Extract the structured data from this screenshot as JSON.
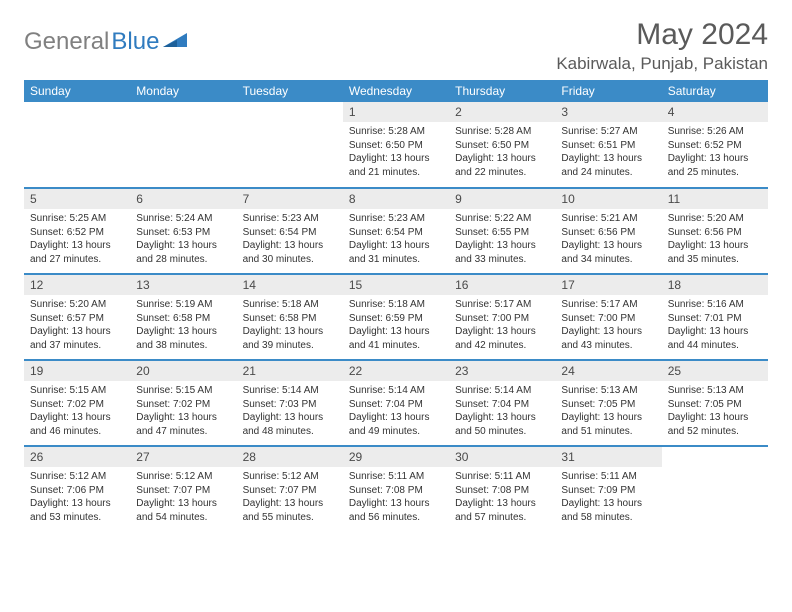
{
  "brand": {
    "name1": "General",
    "name2": "Blue"
  },
  "title": "May 2024",
  "location": "Kabirwala, Punjab, Pakistan",
  "colors": {
    "header_bg": "#3b8bc7",
    "header_text": "#ffffff",
    "daynum_bg": "#ececec",
    "border": "#3b8bc7",
    "logo_gray": "#808080",
    "logo_blue": "#2f7bbf"
  },
  "weekdays": [
    "Sunday",
    "Monday",
    "Tuesday",
    "Wednesday",
    "Thursday",
    "Friday",
    "Saturday"
  ],
  "weeks": [
    [
      null,
      null,
      null,
      {
        "n": "1",
        "sr": "5:28 AM",
        "ss": "6:50 PM",
        "dl": "13 hours and 21 minutes."
      },
      {
        "n": "2",
        "sr": "5:28 AM",
        "ss": "6:50 PM",
        "dl": "13 hours and 22 minutes."
      },
      {
        "n": "3",
        "sr": "5:27 AM",
        "ss": "6:51 PM",
        "dl": "13 hours and 24 minutes."
      },
      {
        "n": "4",
        "sr": "5:26 AM",
        "ss": "6:52 PM",
        "dl": "13 hours and 25 minutes."
      }
    ],
    [
      {
        "n": "5",
        "sr": "5:25 AM",
        "ss": "6:52 PM",
        "dl": "13 hours and 27 minutes."
      },
      {
        "n": "6",
        "sr": "5:24 AM",
        "ss": "6:53 PM",
        "dl": "13 hours and 28 minutes."
      },
      {
        "n": "7",
        "sr": "5:23 AM",
        "ss": "6:54 PM",
        "dl": "13 hours and 30 minutes."
      },
      {
        "n": "8",
        "sr": "5:23 AM",
        "ss": "6:54 PM",
        "dl": "13 hours and 31 minutes."
      },
      {
        "n": "9",
        "sr": "5:22 AM",
        "ss": "6:55 PM",
        "dl": "13 hours and 33 minutes."
      },
      {
        "n": "10",
        "sr": "5:21 AM",
        "ss": "6:56 PM",
        "dl": "13 hours and 34 minutes."
      },
      {
        "n": "11",
        "sr": "5:20 AM",
        "ss": "6:56 PM",
        "dl": "13 hours and 35 minutes."
      }
    ],
    [
      {
        "n": "12",
        "sr": "5:20 AM",
        "ss": "6:57 PM",
        "dl": "13 hours and 37 minutes."
      },
      {
        "n": "13",
        "sr": "5:19 AM",
        "ss": "6:58 PM",
        "dl": "13 hours and 38 minutes."
      },
      {
        "n": "14",
        "sr": "5:18 AM",
        "ss": "6:58 PM",
        "dl": "13 hours and 39 minutes."
      },
      {
        "n": "15",
        "sr": "5:18 AM",
        "ss": "6:59 PM",
        "dl": "13 hours and 41 minutes."
      },
      {
        "n": "16",
        "sr": "5:17 AM",
        "ss": "7:00 PM",
        "dl": "13 hours and 42 minutes."
      },
      {
        "n": "17",
        "sr": "5:17 AM",
        "ss": "7:00 PM",
        "dl": "13 hours and 43 minutes."
      },
      {
        "n": "18",
        "sr": "5:16 AM",
        "ss": "7:01 PM",
        "dl": "13 hours and 44 minutes."
      }
    ],
    [
      {
        "n": "19",
        "sr": "5:15 AM",
        "ss": "7:02 PM",
        "dl": "13 hours and 46 minutes."
      },
      {
        "n": "20",
        "sr": "5:15 AM",
        "ss": "7:02 PM",
        "dl": "13 hours and 47 minutes."
      },
      {
        "n": "21",
        "sr": "5:14 AM",
        "ss": "7:03 PM",
        "dl": "13 hours and 48 minutes."
      },
      {
        "n": "22",
        "sr": "5:14 AM",
        "ss": "7:04 PM",
        "dl": "13 hours and 49 minutes."
      },
      {
        "n": "23",
        "sr": "5:14 AM",
        "ss": "7:04 PM",
        "dl": "13 hours and 50 minutes."
      },
      {
        "n": "24",
        "sr": "5:13 AM",
        "ss": "7:05 PM",
        "dl": "13 hours and 51 minutes."
      },
      {
        "n": "25",
        "sr": "5:13 AM",
        "ss": "7:05 PM",
        "dl": "13 hours and 52 minutes."
      }
    ],
    [
      {
        "n": "26",
        "sr": "5:12 AM",
        "ss": "7:06 PM",
        "dl": "13 hours and 53 minutes."
      },
      {
        "n": "27",
        "sr": "5:12 AM",
        "ss": "7:07 PM",
        "dl": "13 hours and 54 minutes."
      },
      {
        "n": "28",
        "sr": "5:12 AM",
        "ss": "7:07 PM",
        "dl": "13 hours and 55 minutes."
      },
      {
        "n": "29",
        "sr": "5:11 AM",
        "ss": "7:08 PM",
        "dl": "13 hours and 56 minutes."
      },
      {
        "n": "30",
        "sr": "5:11 AM",
        "ss": "7:08 PM",
        "dl": "13 hours and 57 minutes."
      },
      {
        "n": "31",
        "sr": "5:11 AM",
        "ss": "7:09 PM",
        "dl": "13 hours and 58 minutes."
      },
      null
    ]
  ],
  "labels": {
    "sunrise": "Sunrise:",
    "sunset": "Sunset:",
    "daylight": "Daylight:"
  }
}
